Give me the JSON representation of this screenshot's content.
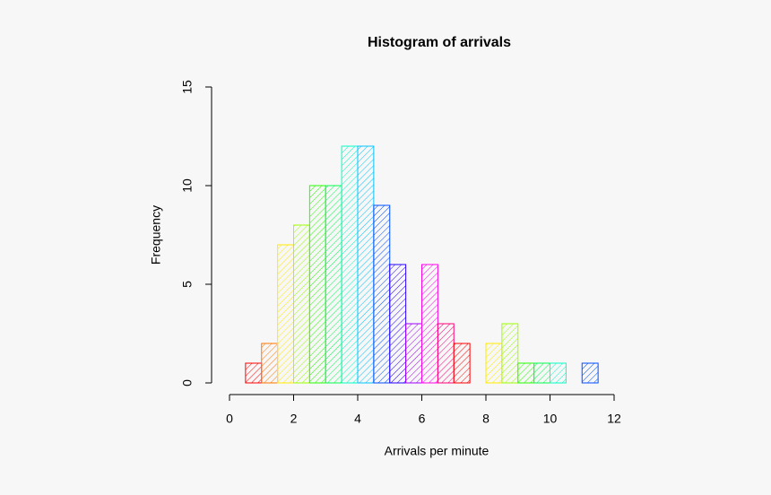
{
  "chart_data": {
    "type": "histogram",
    "title": "Histogram of arrivals",
    "xlabel": "Arrivals per minute",
    "ylabel": "Frequency",
    "bins": [
      0.5,
      1,
      1.5,
      2,
      2.5,
      3,
      3.5,
      4,
      4.5,
      5,
      5.5,
      6,
      6.5,
      7,
      7.5,
      8,
      8.5,
      9,
      9.5,
      10,
      10.5,
      11,
      11.5
    ],
    "counts": [
      1,
      2,
      7,
      8,
      10,
      10,
      12,
      12,
      9,
      6,
      3,
      6,
      3,
      2,
      0,
      2,
      3,
      1,
      1,
      1,
      0,
      1
    ],
    "colors": [
      "#FF0000",
      "#FF7600",
      "#FFEB00",
      "#9DFF00",
      "#27FF00",
      "#00FF4E",
      "#00FFC4",
      "#00C4FF",
      "#004EFF",
      "#2700FF",
      "#9D00FF",
      "#FF00EB",
      "#FF0076",
      "#FF0000",
      "#FF7600",
      "#FFEB00",
      "#9DFF00",
      "#27FF00",
      "#00FF4E",
      "#00FFC4",
      "#00C4FF",
      "#004EFF"
    ],
    "hatched": true,
    "xlim": [
      0,
      12
    ],
    "xticks": [
      0,
      2,
      4,
      6,
      8,
      10,
      12
    ],
    "ylim": [
      0,
      15
    ],
    "yticks": [
      0,
      5,
      10,
      15
    ]
  }
}
